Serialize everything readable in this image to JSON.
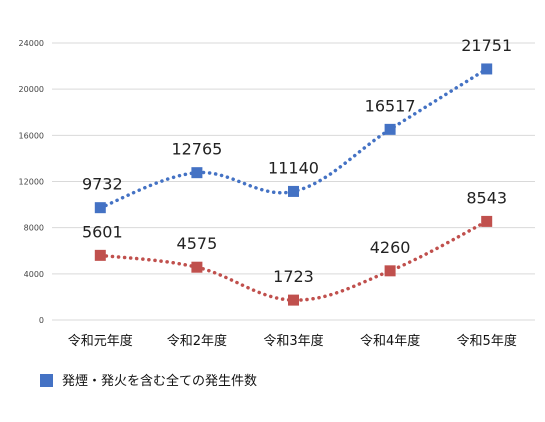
{
  "chart_data": {
    "type": "line",
    "title": "",
    "xlabel": "",
    "ylabel": "",
    "categories": [
      "令和元年度",
      "令和2年度",
      "令和3年度",
      "令和4年度",
      "令和5年度"
    ],
    "ylim": [
      0,
      24000
    ],
    "yticks": [
      0,
      4000,
      8000,
      12000,
      16000,
      20000,
      24000
    ],
    "grid": true,
    "legend_position": "bottom-left",
    "series": [
      {
        "name": "発煙・発火を含む全ての発生件数",
        "values": [
          9732,
          12765,
          11140,
          16517,
          21751
        ],
        "color": "#4472c4",
        "line_style": "dotted",
        "marker": "square"
      },
      {
        "values": [
          5601,
          4575,
          1723,
          4260,
          8543
        ],
        "color": "#c0504d",
        "line_style": "dotted",
        "marker": "square"
      }
    ]
  }
}
